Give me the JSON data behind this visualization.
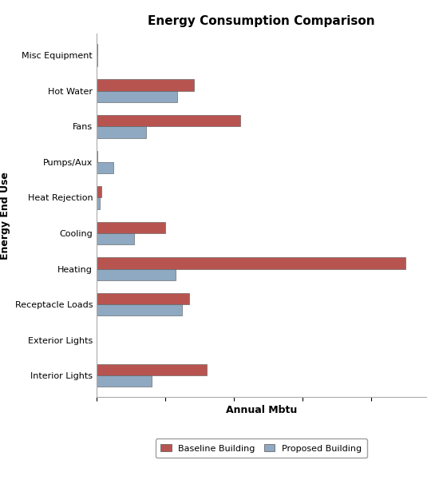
{
  "title": "Energy Consumption Comparison",
  "xlabel": "Annual Mbtu",
  "ylabel": "Energy End Use",
  "categories": [
    "Interior Lights",
    "Exterior Lights",
    "Receptacle Loads",
    "Heating",
    "Cooling",
    "Heat Rejection",
    "Pumps/Aux",
    "Fans",
    "Hot Water",
    "Misc Equipment"
  ],
  "baseline": [
    320,
    1,
    270,
    900,
    200,
    15,
    3,
    420,
    285,
    2
  ],
  "proposed": [
    160,
    1,
    250,
    230,
    110,
    10,
    50,
    145,
    235,
    2
  ],
  "baseline_color": "#b85450",
  "proposed_color": "#8ea9c1",
  "background_color": "#ffffff",
  "plot_background": "#ffffff",
  "legend_labels": [
    "Baseline Building",
    "Proposed Building"
  ],
  "title_fontsize": 11,
  "axis_label_fontsize": 9,
  "tick_fontsize": 8,
  "legend_fontsize": 8,
  "xlim_max": 960
}
